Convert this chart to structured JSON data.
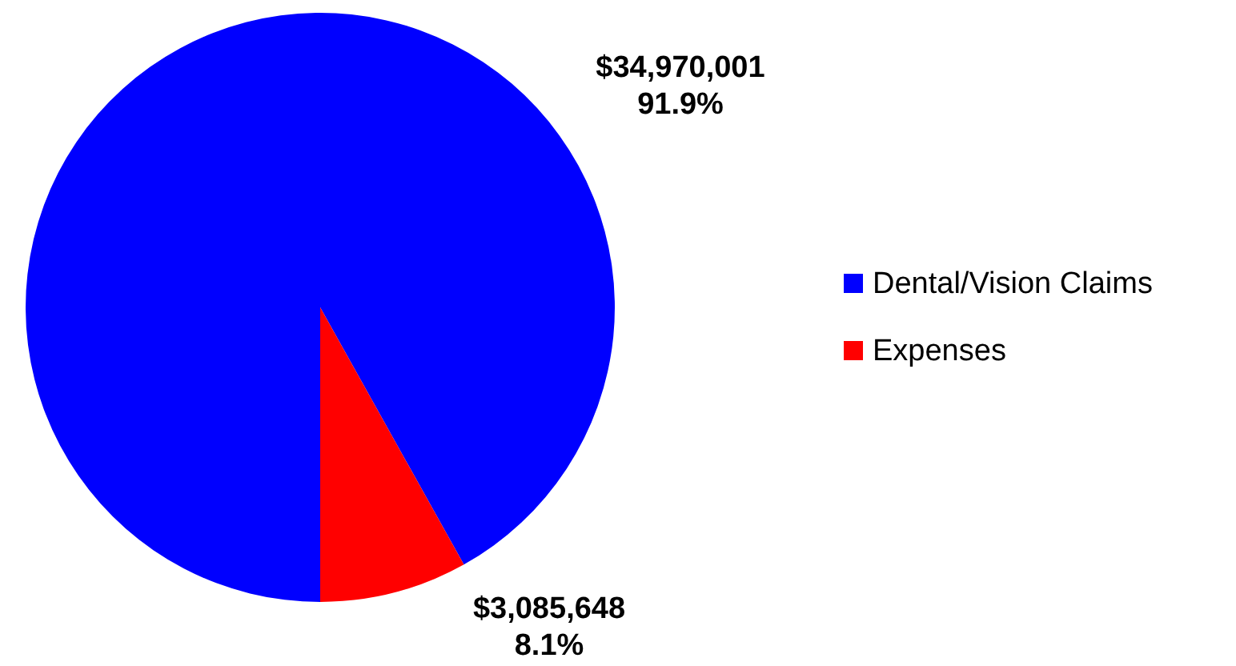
{
  "chart_data": {
    "type": "pie",
    "categories": [
      "Dental/Vision Claims",
      "Expenses"
    ],
    "values": [
      34970001,
      3085648
    ],
    "colors": [
      "#0000ff",
      "#ff0000"
    ],
    "value_labels": [
      "$34,970,001\n91.9%",
      "$3,085,648\n8.1%"
    ],
    "legend": "right"
  }
}
